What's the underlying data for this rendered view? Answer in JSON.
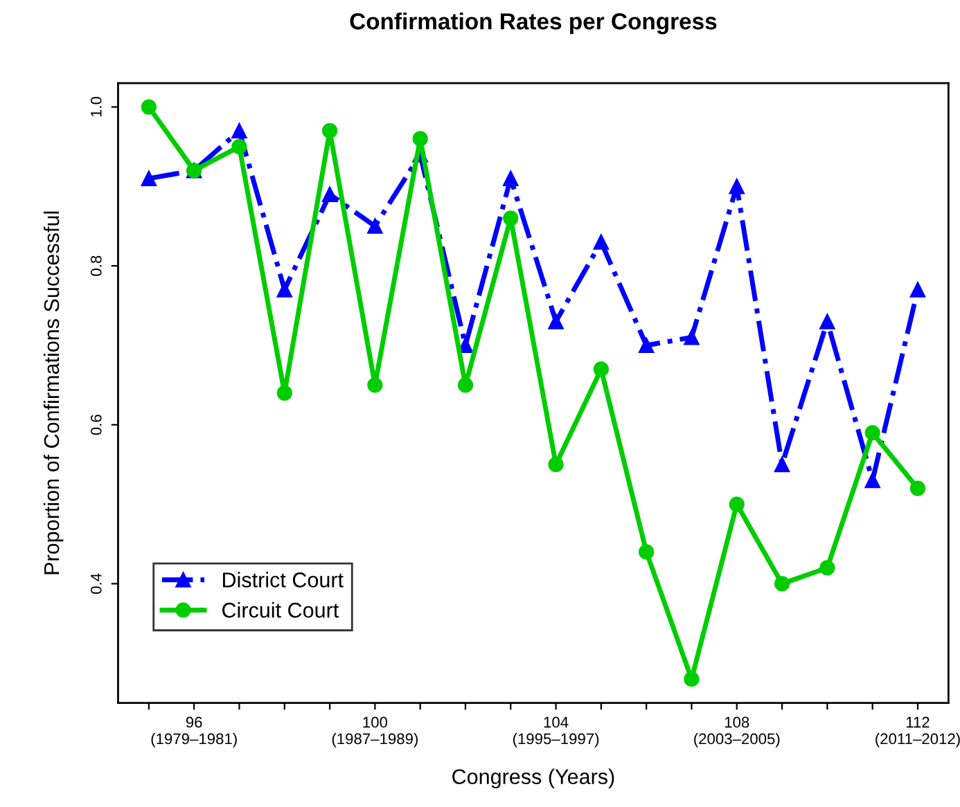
{
  "chart_data": {
    "type": "line",
    "title": "Confirmation Rates per Congress",
    "xlabel": "Congress (Years)",
    "ylabel": "Proportion of Confirmations Successful",
    "categories": [
      null,
      "96\n(1979–1981)",
      null,
      null,
      null,
      "100\n(1987–1989)",
      null,
      null,
      null,
      "104\n(1995–1997)",
      null,
      null,
      null,
      "108\n(2003–2005)",
      null,
      null,
      null,
      "112\n(2011–2012)"
    ],
    "series": [
      {
        "name": "District Court",
        "color": "#0000ff",
        "marker": "triangle",
        "line_style": "dashdot",
        "values": [
          0.91,
          0.92,
          0.97,
          0.77,
          0.89,
          0.85,
          0.94,
          0.7,
          0.91,
          0.73,
          0.83,
          0.7,
          0.71,
          0.9,
          0.55,
          0.73,
          0.53,
          0.77
        ]
      },
      {
        "name": "Circuit Court",
        "color": "#00cd00",
        "marker": "circle",
        "line_style": "solid",
        "values": [
          1.0,
          0.92,
          0.95,
          0.64,
          0.97,
          0.65,
          0.96,
          0.65,
          0.86,
          0.55,
          0.67,
          0.44,
          0.28,
          0.5,
          0.4,
          0.42,
          0.59,
          0.52
        ]
      }
    ],
    "ylim": [
      0.25,
      1.03
    ],
    "yticks": [
      {
        "value": 0.4,
        "label": "0.4"
      },
      {
        "value": 0.6,
        "label": "0.6"
      },
      {
        "value": 0.8,
        "label": "0.8"
      },
      {
        "value": 1.0,
        "label": "1.0"
      }
    ],
    "legend": "bottom left",
    "grid": false
  }
}
